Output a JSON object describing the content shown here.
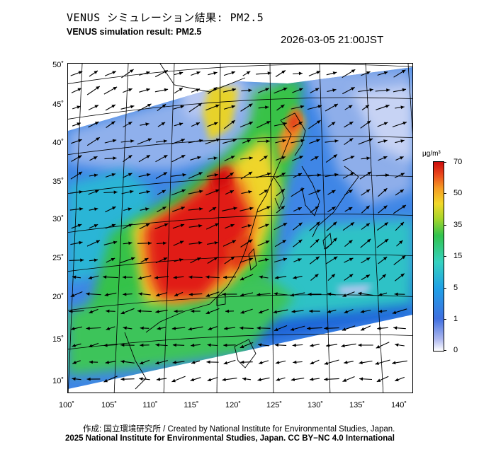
{
  "title_ja": "VENUS シミュレーション結果: PM2.5",
  "title_en": "VENUS simulation result: PM2.5",
  "timestamp": "2026-03-05 21:00JST",
  "y_axis_labels": [
    "50˚",
    "45˚",
    "40˚",
    "35˚",
    "30˚",
    "25˚",
    "20˚",
    "15˚",
    "10˚"
  ],
  "x_axis_labels": [
    "100˚",
    "105˚",
    "110˚",
    "115˚",
    "120˚",
    "125˚",
    "130˚",
    "135˚",
    "140˚"
  ],
  "colorbar": {
    "unit": "μg/m³",
    "ticks": [
      "70",
      "50",
      "35",
      "15",
      "5",
      "1",
      "0"
    ]
  },
  "credit_line1": "作成: 国立環境研究所 / Created by National Institute for Environmental Studies, Japan.",
  "credit_line2": "2025 National Institute for Environmental Studies, Japan. CC BY−NC 4.0 International"
}
